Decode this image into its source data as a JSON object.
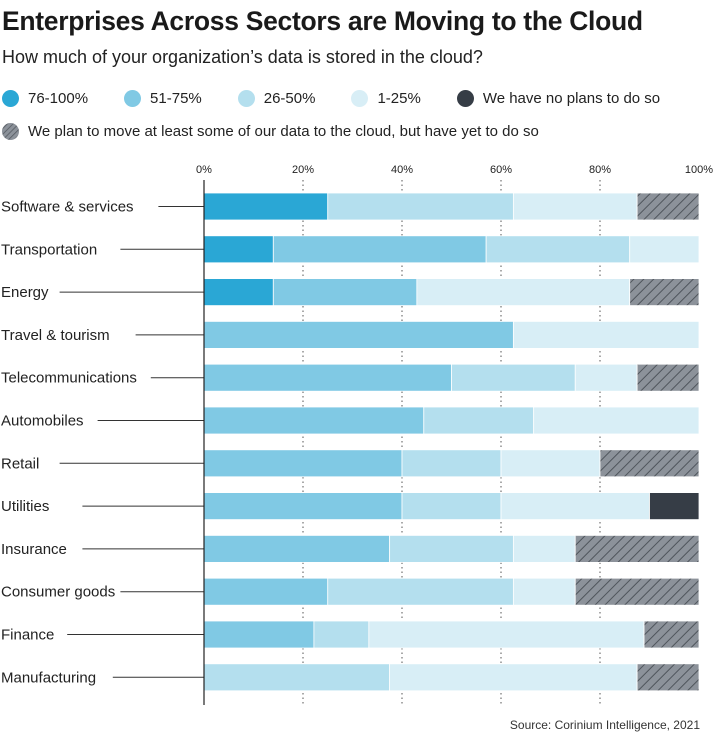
{
  "title": "Enterprises Across Sectors are Moving to the Cloud",
  "subtitle": "How much of your organization’s data is stored in the cloud?",
  "source": "Source: Corinium Intelligence, 2021",
  "colors": {
    "76-100%": "#2aa7d5",
    "51-75%": "#80c9e4",
    "26-50%": "#b4dfee",
    "1-25%": "#d8eef6",
    "none": "#363d46",
    "plan": "#8c929a"
  },
  "legend": [
    {
      "key": "76-100%",
      "label": "76-100%"
    },
    {
      "key": "51-75%",
      "label": "51-75%"
    },
    {
      "key": "26-50%",
      "label": "26-50%"
    },
    {
      "key": "1-25%",
      "label": "1-25%"
    },
    {
      "key": "none",
      "label": "We have no plans to do so"
    },
    {
      "key": "plan",
      "label": "We plan to move at least some of our data to the cloud, but have yet to do so"
    }
  ],
  "chart_data": {
    "type": "bar",
    "orientation": "horizontal",
    "stacked": true,
    "xlim": [
      0,
      100
    ],
    "xticks": [
      "0%",
      "20%",
      "40%",
      "60%",
      "80%",
      "100%"
    ],
    "categories": [
      "Software & services",
      "Transportation",
      "Energy",
      "Travel & tourism",
      "Telecommunications",
      "Automobiles",
      "Retail",
      "Utilities",
      "Insurance",
      "Consumer goods",
      "Finance",
      "Manufacturing"
    ],
    "series": [
      {
        "name": "76-100%",
        "key": "76-100%",
        "values": [
          25,
          14,
          14,
          0,
          0,
          0,
          0,
          0,
          0,
          0,
          0,
          0
        ]
      },
      {
        "name": "51-75%",
        "key": "51-75%",
        "values": [
          0,
          43,
          29,
          62.5,
          50,
          44.4,
          40,
          40,
          37.5,
          25,
          22.2,
          0
        ]
      },
      {
        "name": "26-50%",
        "key": "26-50%",
        "values": [
          37.5,
          29,
          0,
          0,
          25,
          22.2,
          20,
          20,
          25,
          37.5,
          11.1,
          37.5
        ]
      },
      {
        "name": "1-25%",
        "key": "1-25%",
        "values": [
          25,
          14,
          43,
          37.5,
          12.5,
          33.4,
          20,
          30,
          12.5,
          12.5,
          55.6,
          50
        ]
      },
      {
        "name": "We have no plans to do so",
        "key": "none",
        "values": [
          0,
          0,
          0,
          0,
          0,
          0,
          0,
          10,
          0,
          0,
          0,
          0
        ]
      },
      {
        "name": "We plan to move at least some of our data to the cloud, but have yet to do so",
        "key": "plan",
        "values": [
          12.5,
          0,
          14,
          0,
          12.5,
          0,
          20,
          0,
          25,
          25,
          11.1,
          12.5
        ]
      }
    ],
    "grid": "vertical dotted",
    "legend_position": "top"
  }
}
